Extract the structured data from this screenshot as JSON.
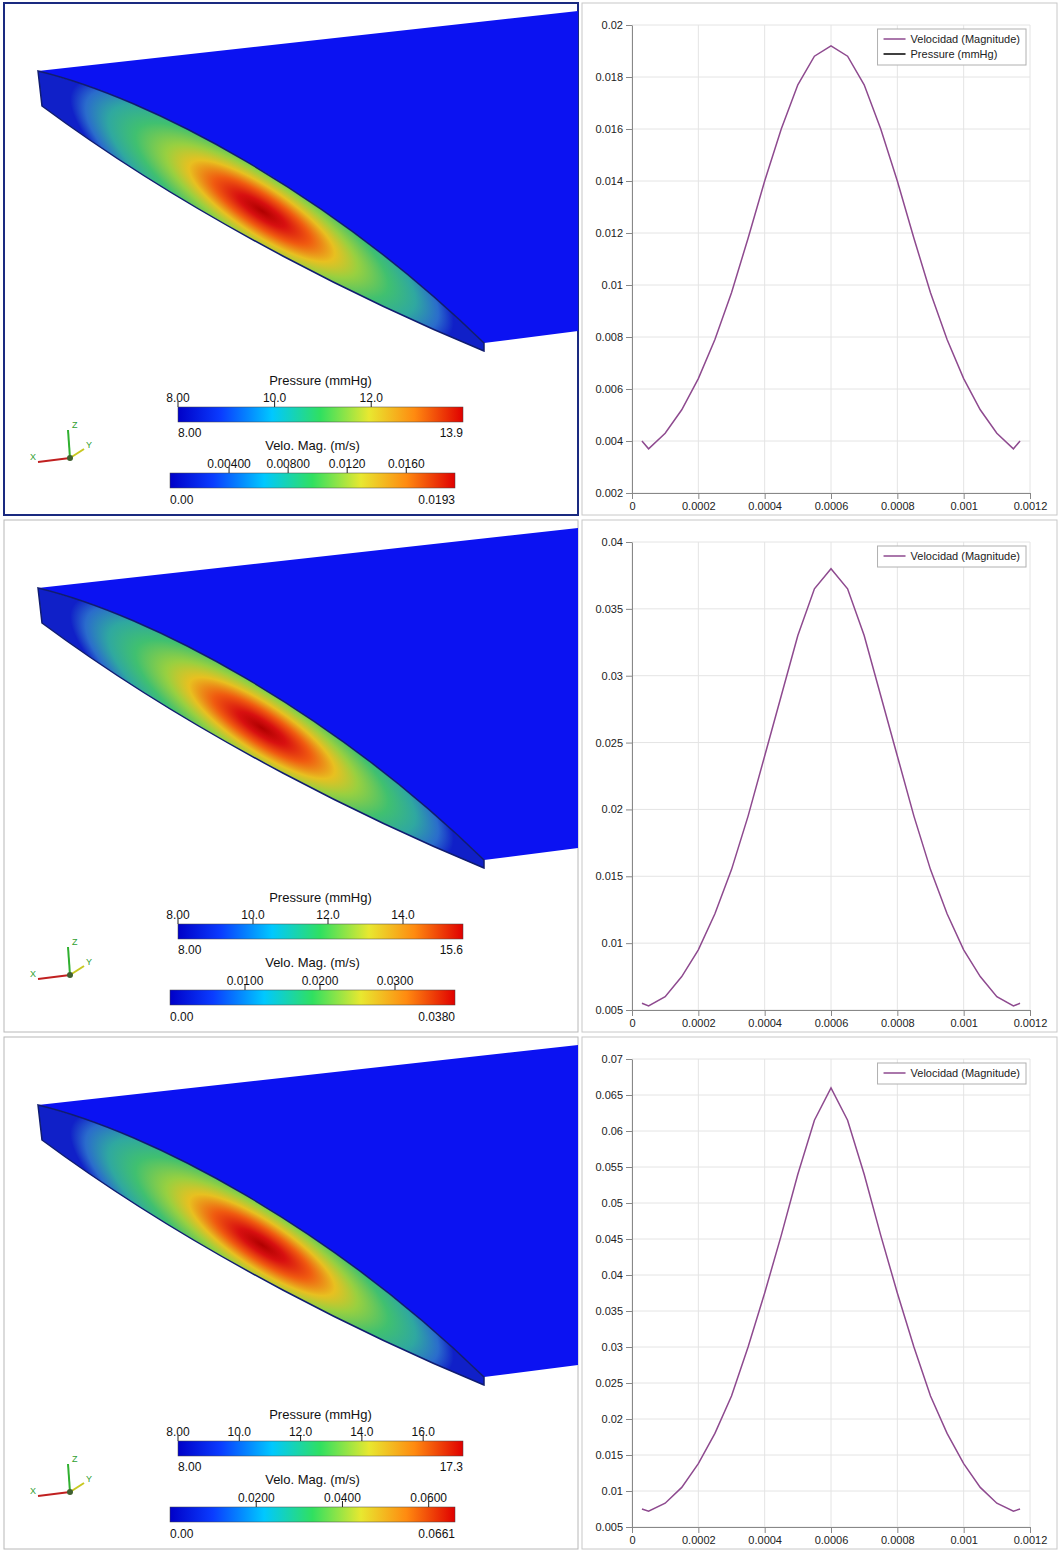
{
  "chart_data": [
    {
      "type": "line",
      "x": [
        3e-05,
        5e-05,
        0.0001,
        0.00015,
        0.0002,
        0.00025,
        0.0003,
        0.00035,
        0.0004,
        0.00045,
        0.0005,
        0.00055,
        0.0006,
        0.00065,
        0.0007,
        0.00075,
        0.0008,
        0.00085,
        0.0009,
        0.00095,
        0.001,
        0.00105,
        0.0011,
        0.00115,
        0.00117
      ],
      "series": [
        {
          "name": "Velocidad (Magnitude)",
          "color": "#8e4a8f",
          "values": [
            0.004,
            0.0037,
            0.0043,
            0.0052,
            0.0064,
            0.0079,
            0.0097,
            0.0118,
            0.014,
            0.016,
            0.0177,
            0.0188,
            0.0192,
            0.0188,
            0.0177,
            0.016,
            0.014,
            0.0118,
            0.0097,
            0.0079,
            0.0064,
            0.0052,
            0.0043,
            0.0037,
            0.004
          ]
        },
        {
          "name": "Pressure (mmHg)",
          "color": "#000000",
          "values": [
            null,
            null,
            null,
            null,
            null,
            null,
            null,
            null,
            null,
            null,
            null,
            null,
            null,
            null,
            null,
            null,
            null,
            null,
            null,
            null,
            null,
            null,
            null,
            null,
            null
          ]
        }
      ],
      "xlim": [
        0,
        0.0012
      ],
      "xticks": [
        0,
        0.0002,
        0.0004,
        0.0006,
        0.0008,
        0.001,
        0.0012
      ],
      "ylim": [
        0.002,
        0.02
      ],
      "yticks": [
        0.002,
        0.004,
        0.006,
        0.008,
        0.01,
        0.012,
        0.014,
        0.016,
        0.018,
        0.02
      ],
      "grid": true,
      "legend": "upper right"
    },
    {
      "type": "line",
      "x": [
        3e-05,
        5e-05,
        0.0001,
        0.00015,
        0.0002,
        0.00025,
        0.0003,
        0.00035,
        0.0004,
        0.00045,
        0.0005,
        0.00055,
        0.0006,
        0.00065,
        0.0007,
        0.00075,
        0.0008,
        0.00085,
        0.0009,
        0.00095,
        0.001,
        0.00105,
        0.0011,
        0.00115,
        0.00117
      ],
      "series": [
        {
          "name": "Velocidad (Magnitude)",
          "color": "#8e4a8f",
          "values": [
            0.0055,
            0.0053,
            0.006,
            0.0075,
            0.0095,
            0.0122,
            0.0155,
            0.0195,
            0.024,
            0.0285,
            0.033,
            0.0365,
            0.038,
            0.0365,
            0.033,
            0.0285,
            0.024,
            0.0195,
            0.0155,
            0.0122,
            0.0095,
            0.0075,
            0.006,
            0.0053,
            0.0055
          ]
        }
      ],
      "xlim": [
        0,
        0.0012
      ],
      "xticks": [
        0,
        0.0002,
        0.0004,
        0.0006,
        0.0008,
        0.001,
        0.0012
      ],
      "ylim": [
        0.005,
        0.04
      ],
      "yticks": [
        0.005,
        0.01,
        0.015,
        0.02,
        0.025,
        0.03,
        0.035,
        0.04
      ],
      "grid": true,
      "legend": "upper right"
    },
    {
      "type": "line",
      "x": [
        3e-05,
        5e-05,
        0.0001,
        0.00015,
        0.0002,
        0.00025,
        0.0003,
        0.00035,
        0.0004,
        0.00045,
        0.0005,
        0.00055,
        0.0006,
        0.00065,
        0.0007,
        0.00075,
        0.0008,
        0.00085,
        0.0009,
        0.00095,
        0.001,
        0.00105,
        0.0011,
        0.00115,
        0.00117
      ],
      "series": [
        {
          "name": "Velocidad (Magnitude)",
          "color": "#8e4a8f",
          "values": [
            0.0075,
            0.0072,
            0.0083,
            0.0105,
            0.0138,
            0.018,
            0.0232,
            0.03,
            0.0375,
            0.0455,
            0.054,
            0.0615,
            0.066,
            0.0615,
            0.054,
            0.0455,
            0.0375,
            0.03,
            0.0232,
            0.018,
            0.0138,
            0.0105,
            0.0083,
            0.0072,
            0.0075
          ]
        }
      ],
      "xlim": [
        0,
        0.0012
      ],
      "xticks": [
        0,
        0.0002,
        0.0004,
        0.0006,
        0.0008,
        0.001,
        0.0012
      ],
      "ylim": [
        0.005,
        0.07
      ],
      "yticks": [
        0.005,
        0.01,
        0.015,
        0.02,
        0.025,
        0.03,
        0.035,
        0.04,
        0.045,
        0.05,
        0.055,
        0.06,
        0.065,
        0.07
      ],
      "grid": true,
      "legend": "upper right"
    }
  ],
  "renders": [
    {
      "triad_labels": [
        "Z",
        "Y",
        "X"
      ],
      "colorbars": [
        {
          "title": "Pressure (mmHg)",
          "min": {
            "value": 8,
            "label": "8.00"
          },
          "max": 13.9,
          "ticks": [
            {
              "value": 8,
              "label": "8.00"
            },
            {
              "value": 10,
              "label": "10.0"
            },
            {
              "value": 12,
              "label": "12.0"
            }
          ]
        },
        {
          "title": "Velo. Mag. (m/s)",
          "min": {
            "value": 0,
            "label": "0.00"
          },
          "max": 0.0193,
          "ticks": [
            {
              "value": 0.004,
              "label": "0.00400"
            },
            {
              "value": 0.008,
              "label": "0.00800"
            },
            {
              "value": 0.012,
              "label": "0.0120"
            },
            {
              "value": 0.016,
              "label": "0.0160"
            }
          ]
        }
      ]
    },
    {
      "triad_labels": [
        "Z",
        "Y",
        "X"
      ],
      "colorbars": [
        {
          "title": "Pressure (mmHg)",
          "min": {
            "value": 8,
            "label": "8.00"
          },
          "max": 15.6,
          "ticks": [
            {
              "value": 8,
              "label": "8.00"
            },
            {
              "value": 10,
              "label": "10.0"
            },
            {
              "value": 12,
              "label": "12.0"
            },
            {
              "value": 14,
              "label": "14.0"
            }
          ]
        },
        {
          "title": "Velo. Mag. (m/s)",
          "min": {
            "value": 0,
            "label": "0.00"
          },
          "max": {
            "value": 0.038,
            "label": "0.0380"
          },
          "ticks": [
            {
              "value": 0.01,
              "label": "0.0100"
            },
            {
              "value": 0.02,
              "label": "0.0200"
            },
            {
              "value": 0.03,
              "label": "0.0300"
            }
          ]
        }
      ]
    },
    {
      "triad_labels": [
        "Z",
        "Y",
        "X"
      ],
      "colorbars": [
        {
          "title": "Pressure (mmHg)",
          "min": {
            "value": 8,
            "label": "8.00"
          },
          "max": 17.3,
          "ticks": [
            {
              "value": 8,
              "label": "8.00"
            },
            {
              "value": 10,
              "label": "10.0"
            },
            {
              "value": 12,
              "label": "12.0"
            },
            {
              "value": 14,
              "label": "14.0"
            },
            {
              "value": 16,
              "label": "16.0"
            }
          ]
        },
        {
          "title": "Velo. Mag. (m/s)",
          "min": {
            "value": 0,
            "label": "0.00"
          },
          "max": 0.0661,
          "ticks": [
            {
              "value": 0.02,
              "label": "0.0200"
            },
            {
              "value": 0.04,
              "label": "0.0400"
            },
            {
              "value": 0.06,
              "label": "0.0600"
            }
          ]
        }
      ]
    }
  ]
}
